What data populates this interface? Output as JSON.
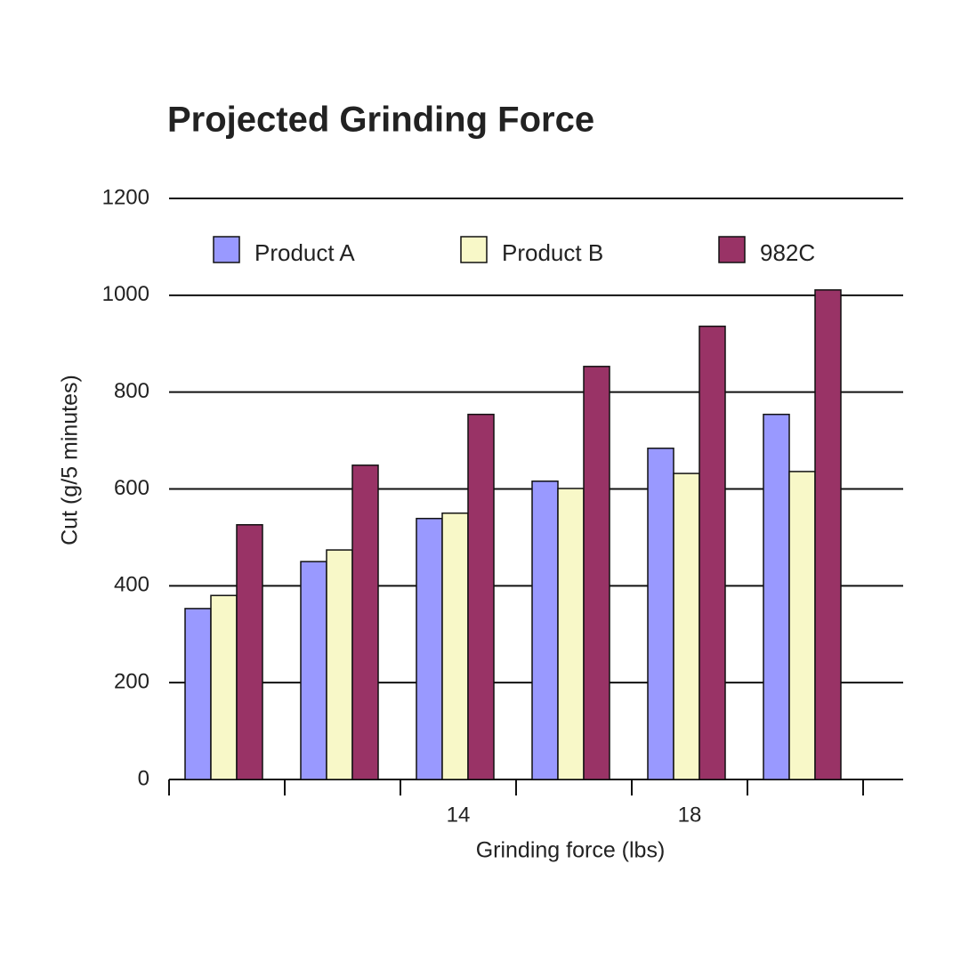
{
  "chart_data": {
    "type": "bar",
    "title": "Projected Grinding Force",
    "x_label": "Grinding force (lbs)",
    "y_label": "Cut (g/5 minutes)",
    "categories": [
      null,
      null,
      "14",
      null,
      "18",
      null
    ],
    "series": [
      {
        "name": "Product A",
        "color": "#9999ff",
        "values": [
          353,
          450,
          539,
          616,
          684,
          754
        ]
      },
      {
        "name": "Product B",
        "color": "#f8f8c8",
        "values": [
          380,
          474,
          550,
          601,
          632,
          636
        ]
      },
      {
        "name": "982C",
        "color": "#993366",
        "values": [
          526,
          649,
          754,
          853,
          936,
          1011
        ]
      }
    ],
    "ylim": [
      0,
      1200
    ],
    "yticks": [
      0,
      200,
      400,
      600,
      800,
      1000,
      1200
    ],
    "grid": true,
    "legend": "top"
  }
}
